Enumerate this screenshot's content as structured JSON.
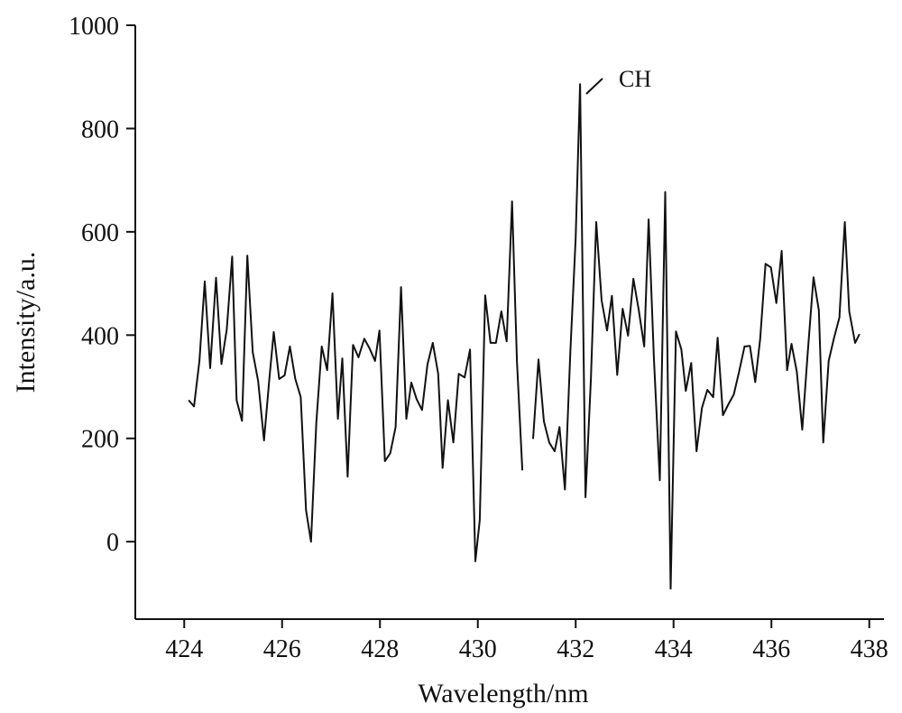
{
  "chart_data": {
    "type": "line",
    "xlabel": "Wavelength/nm",
    "ylabel": "Intensity/a.u.",
    "annotation": "CH",
    "xlim": [
      423,
      438.3
    ],
    "ylim": [
      -150,
      1000
    ],
    "xticks": [
      424,
      426,
      428,
      430,
      432,
      434,
      436,
      438
    ],
    "yticks": [
      0,
      200,
      400,
      600,
      800,
      1000
    ],
    "grid": false,
    "series": [
      {
        "color": "#111111",
        "x": [
          424.09,
          424.2,
          424.31,
          424.42,
          424.53,
          424.65,
          424.76,
          424.87,
          424.98,
          425.07,
          425.18,
          425.29,
          425.4,
          425.51,
          425.63,
          425.74,
          425.83,
          425.94,
          426.05,
          426.16,
          426.27,
          426.38,
          426.49,
          426.59,
          426.7,
          426.81,
          426.92,
          427.03,
          427.14,
          427.23,
          427.34,
          427.45,
          427.56,
          427.68,
          427.79,
          427.9,
          427.99,
          428.1,
          428.21,
          428.32,
          428.43,
          428.54,
          428.64,
          428.75,
          428.86,
          428.97,
          429.08,
          429.19,
          429.28,
          429.39,
          429.5,
          429.61,
          429.73,
          429.84,
          429.95,
          430.04,
          430.15,
          430.26,
          430.37,
          430.48,
          430.59,
          430.7,
          430.8,
          430.91,
          431.02,
          431.13,
          431.24,
          431.35,
          431.46,
          431.57,
          431.67,
          431.78,
          431.89,
          432.0,
          432.09,
          432.2,
          432.31,
          432.42,
          432.53,
          432.64,
          432.74,
          432.85,
          432.96,
          433.07,
          433.18,
          433.29,
          433.4,
          433.49,
          433.6,
          433.72,
          433.83,
          433.94,
          434.05,
          434.16,
          434.25,
          434.36,
          434.47,
          434.58,
          434.69,
          434.81,
          434.9,
          435.01,
          435.12,
          435.23,
          435.34,
          435.45,
          435.56,
          435.67,
          435.77,
          435.88,
          435.99,
          436.1,
          436.21,
          436.32,
          436.41,
          436.52,
          436.63,
          436.74,
          436.86,
          436.97,
          437.06,
          437.17,
          437.28,
          437.39,
          437.5,
          437.59,
          437.71,
          437.8
        ],
        "values": [
          274,
          262,
          350,
          504,
          336,
          511,
          344,
          411,
          552,
          274,
          234,
          554,
          367,
          311,
          196,
          315,
          406,
          315,
          322,
          378,
          315,
          280,
          61,
          0,
          231,
          378,
          332,
          481,
          238,
          355,
          126,
          381,
          357,
          393,
          374,
          350,
          409,
          156,
          171,
          222,
          493,
          238,
          308,
          276,
          255,
          343,
          385,
          325,
          143,
          274,
          192,
          325,
          318,
          372,
          -38,
          42,
          477,
          385,
          385,
          446,
          388,
          659,
          350,
          138,
          null,
          199,
          353,
          233,
          192,
          175,
          222,
          101,
          367,
          587,
          886,
          86,
          315,
          619,
          467,
          409,
          476,
          323,
          451,
          399,
          509,
          448,
          378,
          624,
          353,
          119,
          677,
          -91,
          407,
          372,
          292,
          346,
          175,
          259,
          294,
          280,
          395,
          245,
          266,
          285,
          329,
          378,
          379,
          309,
          393,
          538,
          531,
          462,
          563,
          332,
          383,
          329,
          217,
          364,
          512,
          448,
          192,
          350,
          395,
          434,
          619,
          446,
          385,
          402
        ]
      }
    ]
  }
}
